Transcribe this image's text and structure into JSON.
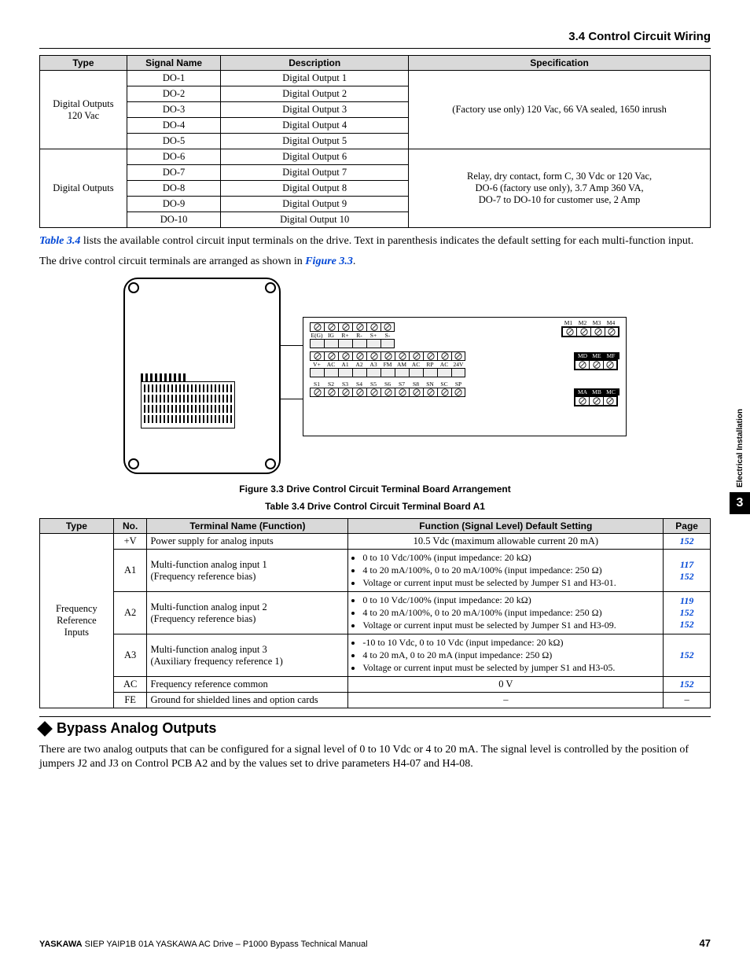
{
  "header": {
    "section_title": "3.4 Control Circuit Wiring"
  },
  "side_tab": {
    "label": "Electrical Installation",
    "chapter": "3"
  },
  "table_top": {
    "headers": {
      "type": "Type",
      "signal": "Signal Name",
      "desc": "Description",
      "spec": "Specification"
    },
    "groups": [
      {
        "type_label": "Digital Outputs\n120 Vac",
        "spec": "(Factory use only) 120 Vac, 66 VA sealed, 1650 inrush",
        "rows": [
          {
            "sig": "DO-1",
            "desc": "Digital Output 1"
          },
          {
            "sig": "DO-2",
            "desc": "Digital Output 2"
          },
          {
            "sig": "DO-3",
            "desc": "Digital Output 3"
          },
          {
            "sig": "DO-4",
            "desc": "Digital Output 4"
          },
          {
            "sig": "DO-5",
            "desc": "Digital Output 5"
          }
        ]
      },
      {
        "type_label": "Digital Outputs",
        "spec": "Relay, dry contact, form C, 30 Vdc or 120 Vac,\nDO-6 (factory use only), 3.7 Amp 360 VA,\nDO-7 to DO-10 for customer use, 2 Amp",
        "rows": [
          {
            "sig": "DO-6",
            "desc": "Digital Output 6"
          },
          {
            "sig": "DO-7",
            "desc": "Digital Output 7"
          },
          {
            "sig": "DO-8",
            "desc": "Digital Output 8"
          },
          {
            "sig": "DO-9",
            "desc": "Digital Output 9"
          },
          {
            "sig": "DO-10",
            "desc": "Digital Output 10"
          }
        ]
      }
    ]
  },
  "paragraphs": {
    "p1_pre": "",
    "p1_link": "Table 3.4",
    "p1_post": " lists the available control circuit input terminals on the drive. Text in parenthesis indicates the default setting for each multi-function input.",
    "p2_pre": "The drive control circuit terminals are arranged as shown in ",
    "p2_link": "Figure 3.3",
    "p2_post": "."
  },
  "figure": {
    "caption": "Figure 3.3  Drive Control Circuit Terminal Board Arrangement",
    "row1_labels": [
      "E(G)",
      "IG",
      "R+",
      "R-",
      "S+",
      "S-"
    ],
    "row2_labels": [
      "V+",
      "AC",
      "A1",
      "A2",
      "A3",
      "FM",
      "AM",
      "AC",
      "RP",
      "AC",
      "24V"
    ],
    "row3_labels": [
      "S1",
      "S2",
      "S3",
      "S4",
      "S5",
      "S6",
      "S7",
      "S8",
      "SN",
      "SC",
      "SP"
    ],
    "rel1_labels": [
      "M1",
      "M2",
      "M3",
      "M4"
    ],
    "rel2_labels": [
      "MD",
      "ME",
      "MF"
    ],
    "rel3_labels": [
      "MA",
      "MB",
      "MC"
    ]
  },
  "table34_caption": "Table 3.4  Drive Control Circuit Terminal Board A1",
  "table34": {
    "headers": {
      "type": "Type",
      "no": "No.",
      "name": "Terminal Name (Function)",
      "func": "Function (Signal Level) Default Setting",
      "page": "Page"
    },
    "type_label": "Frequency\nReference\nInputs",
    "rows": [
      {
        "no": "+V",
        "name": "Power supply for analog inputs",
        "func_plain": "10.5 Vdc (maximum allowable current 20 mA)",
        "pages": [
          "152"
        ]
      },
      {
        "no": "A1",
        "name": "Multi-function analog input 1\n(Frequency reference bias)",
        "func_items": [
          "0 to 10 Vdc/100% (input impedance: 20 kΩ)",
          "4 to 20 mA/100%, 0 to 20 mA/100% (input impedance: 250 Ω)",
          "Voltage or current input must be selected by Jumper S1 and H3-01."
        ],
        "pages": [
          "117",
          "152"
        ]
      },
      {
        "no": "A2",
        "name": "Multi-function analog input 2\n(Frequency reference bias)",
        "func_items": [
          "0 to 10 Vdc/100% (input impedance: 20 kΩ)",
          "4 to 20 mA/100%, 0 to 20 mA/100% (input impedance: 250 Ω)",
          "Voltage or current input must be selected by Jumper S1 and H3-09."
        ],
        "pages": [
          "119",
          "152",
          "152"
        ]
      },
      {
        "no": "A3",
        "name": "Multi-function analog input 3\n(Auxiliary frequency reference 1)",
        "func_items": [
          "-10 to 10 Vdc, 0 to 10 Vdc (input impedance: 20 kΩ)",
          "4 to 20 mA, 0 to 20 mA (input impedance: 250 Ω)",
          "Voltage or current input must be selected by jumper S1 and H3-05."
        ],
        "pages": [
          "152"
        ]
      },
      {
        "no": "AC",
        "name": "Frequency reference common",
        "func_plain": "0 V",
        "pages": [
          "152"
        ]
      },
      {
        "no": "FE",
        "name": "Ground for shielded lines and option cards",
        "func_plain": "–",
        "pages": [
          "–"
        ]
      }
    ]
  },
  "bypass": {
    "heading": "Bypass Analog Outputs",
    "body": "There are two analog outputs that can be configured for a signal level of 0 to 10 Vdc or 4 to 20 mA. The signal level is controlled by the position of jumpers J2 and J3 on Control PCB A2 and by the values set to drive parameters H4-07 and H4-08."
  },
  "footer": {
    "brand": "YASKAWA",
    "rest": " SIEP YAIP1B 01A YASKAWA AC Drive – P1000 Bypass Technical Manual",
    "page": "47"
  },
  "style": {
    "header_bg": "#d9d9d9",
    "link_color": "#0047d6"
  }
}
